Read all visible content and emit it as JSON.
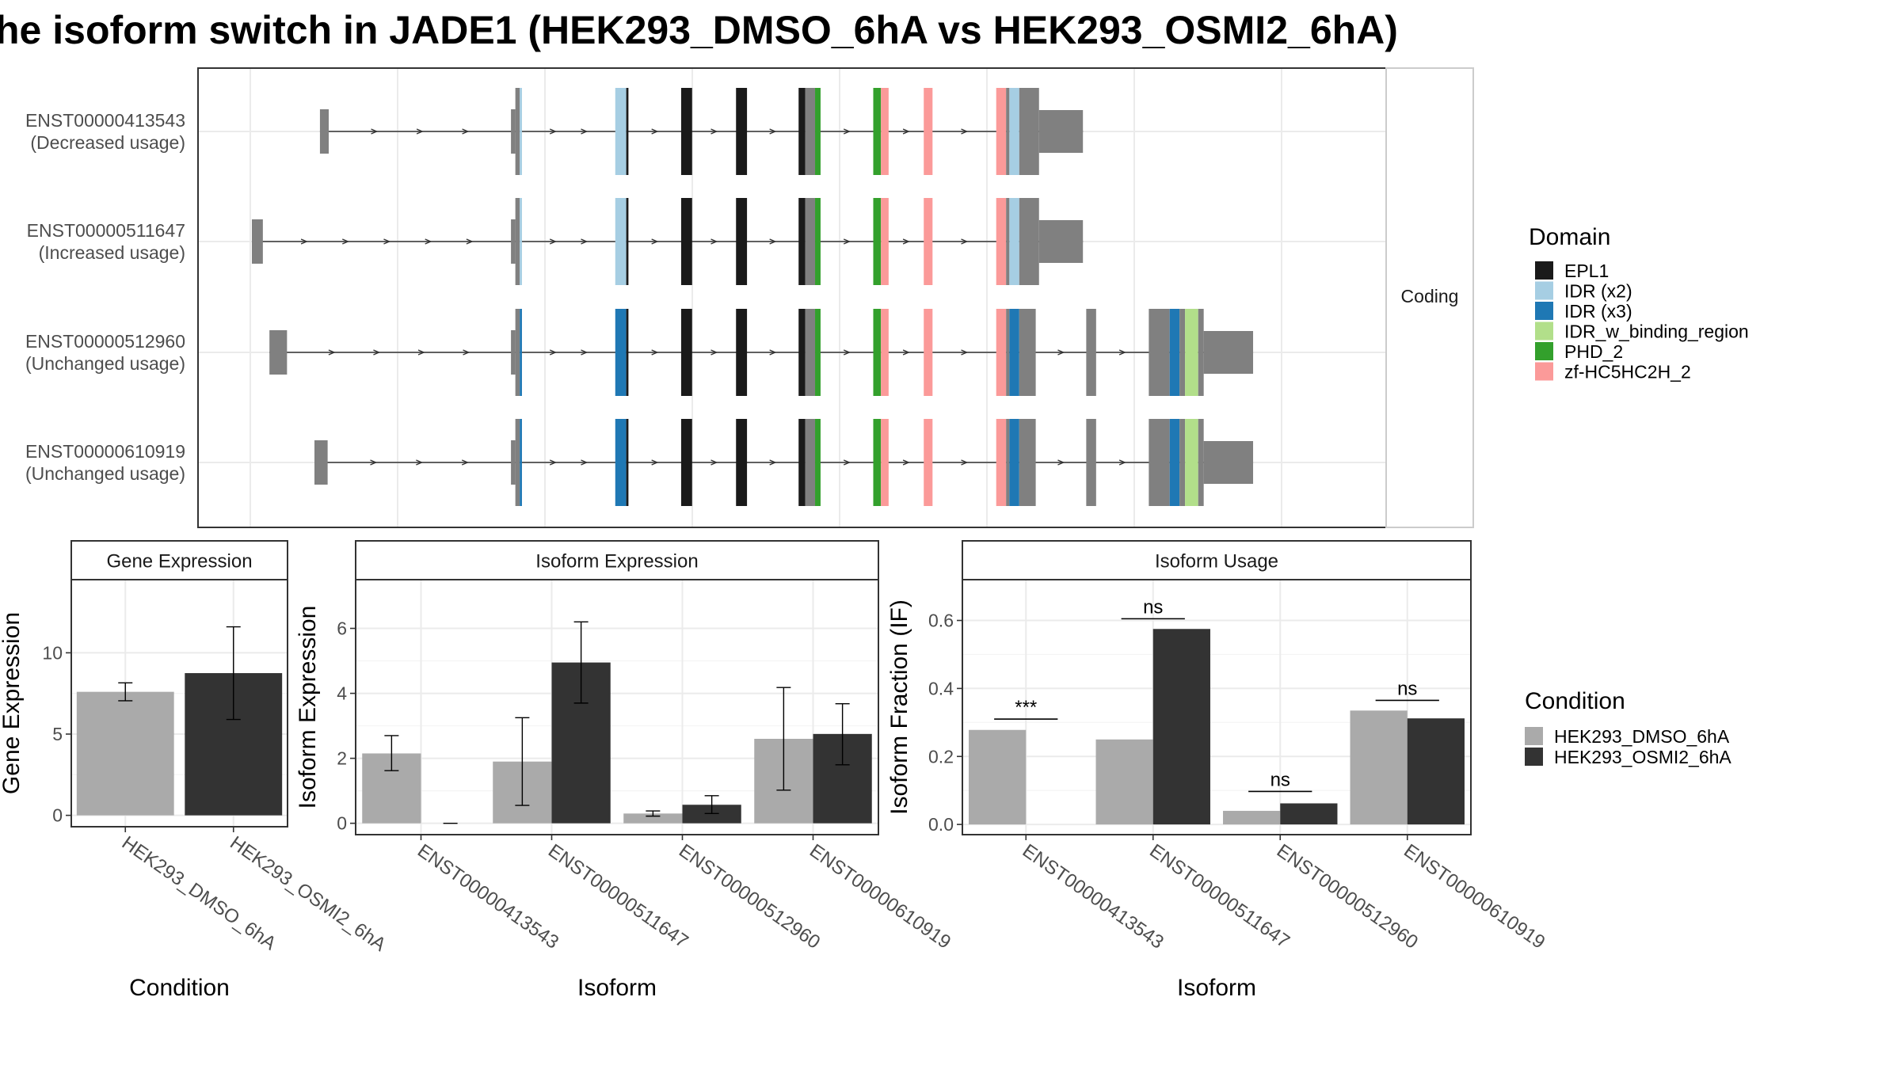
{
  "title": "he isoform switch in JADE1 (HEK293_DMSO_6hA vs HEK293_OSMI2_6hA)",
  "colors": {
    "EPL1": "#1a1a1a",
    "IDR (x2)": "#a6cee3",
    "IDR (x3)": "#1f78b4",
    "IDR_w_binding_region": "#b2df8a",
    "PHD_2": "#33a02c",
    "zf-HC5HC2H_2": "#fb9a99",
    "noncoding": "#808080",
    "dmso": "#aaaaaa",
    "osmi": "#333333"
  },
  "structure": {
    "strip_label": "Coding",
    "legend_title": "Domain",
    "legend_items": [
      "EPL1",
      "IDR (x2)",
      "IDR (x3)",
      "IDR_w_binding_region",
      "PHD_2",
      "zf-HC5HC2H_2"
    ],
    "genomic_range": [
      0,
      1000
    ],
    "transcripts": [
      {
        "id": "ENST00000413543",
        "status": "(Decreased usage)",
        "exons": [
          {
            "start": 62,
            "end": 70,
            "size": "small",
            "domain": "noncoding"
          },
          {
            "start": 236,
            "end": 240,
            "size": "small",
            "domain": "noncoding"
          },
          {
            "start": 240,
            "end": 244,
            "size": "large",
            "domain": "noncoding"
          },
          {
            "start": 244,
            "end": 246,
            "size": "large",
            "domain": "IDR (x2)"
          },
          {
            "start": 331,
            "end": 341,
            "size": "large",
            "domain": "IDR (x2)"
          },
          {
            "start": 341,
            "end": 343,
            "size": "large",
            "domain": "EPL1"
          },
          {
            "start": 391,
            "end": 401,
            "size": "large",
            "domain": "EPL1"
          },
          {
            "start": 441,
            "end": 451,
            "size": "large",
            "domain": "EPL1"
          },
          {
            "start": 498,
            "end": 504,
            "size": "large",
            "domain": "EPL1"
          },
          {
            "start": 504,
            "end": 513,
            "size": "large",
            "domain": "noncoding"
          },
          {
            "start": 513,
            "end": 518,
            "size": "large",
            "domain": "PHD_2"
          },
          {
            "start": 566,
            "end": 573,
            "size": "large",
            "domain": "PHD_2"
          },
          {
            "start": 573,
            "end": 580,
            "size": "large",
            "domain": "zf-HC5HC2H_2"
          },
          {
            "start": 612,
            "end": 620,
            "size": "large",
            "domain": "zf-HC5HC2H_2"
          },
          {
            "start": 678,
            "end": 687,
            "size": "large",
            "domain": "zf-HC5HC2H_2"
          },
          {
            "start": 687,
            "end": 690,
            "size": "large",
            "domain": "noncoding"
          },
          {
            "start": 690,
            "end": 699,
            "size": "large",
            "domain": "IDR (x2)"
          },
          {
            "start": 699,
            "end": 717,
            "size": "large",
            "domain": "noncoding"
          },
          {
            "start": 717,
            "end": 757,
            "size": "medium",
            "domain": "noncoding"
          }
        ]
      },
      {
        "id": "ENST00000511647",
        "status": "(Increased usage)",
        "exons": [
          {
            "start": 0,
            "end": 10,
            "size": "small",
            "domain": "noncoding"
          },
          {
            "start": 236,
            "end": 240,
            "size": "small",
            "domain": "noncoding"
          },
          {
            "start": 240,
            "end": 244,
            "size": "large",
            "domain": "noncoding"
          },
          {
            "start": 244,
            "end": 246,
            "size": "large",
            "domain": "IDR (x2)"
          },
          {
            "start": 331,
            "end": 341,
            "size": "large",
            "domain": "IDR (x2)"
          },
          {
            "start": 341,
            "end": 343,
            "size": "large",
            "domain": "EPL1"
          },
          {
            "start": 391,
            "end": 401,
            "size": "large",
            "domain": "EPL1"
          },
          {
            "start": 441,
            "end": 451,
            "size": "large",
            "domain": "EPL1"
          },
          {
            "start": 498,
            "end": 504,
            "size": "large",
            "domain": "EPL1"
          },
          {
            "start": 504,
            "end": 513,
            "size": "large",
            "domain": "noncoding"
          },
          {
            "start": 513,
            "end": 518,
            "size": "large",
            "domain": "PHD_2"
          },
          {
            "start": 566,
            "end": 573,
            "size": "large",
            "domain": "PHD_2"
          },
          {
            "start": 573,
            "end": 580,
            "size": "large",
            "domain": "zf-HC5HC2H_2"
          },
          {
            "start": 612,
            "end": 620,
            "size": "large",
            "domain": "zf-HC5HC2H_2"
          },
          {
            "start": 678,
            "end": 687,
            "size": "large",
            "domain": "zf-HC5HC2H_2"
          },
          {
            "start": 687,
            "end": 690,
            "size": "large",
            "domain": "noncoding"
          },
          {
            "start": 690,
            "end": 699,
            "size": "large",
            "domain": "IDR (x2)"
          },
          {
            "start": 699,
            "end": 717,
            "size": "large",
            "domain": "noncoding"
          },
          {
            "start": 717,
            "end": 757,
            "size": "medium",
            "domain": "noncoding"
          }
        ]
      },
      {
        "id": "ENST00000512960",
        "status": "(Unchanged usage)",
        "exons": [
          {
            "start": 16,
            "end": 32,
            "size": "small",
            "domain": "noncoding"
          },
          {
            "start": 236,
            "end": 240,
            "size": "small",
            "domain": "noncoding"
          },
          {
            "start": 240,
            "end": 244,
            "size": "large",
            "domain": "noncoding"
          },
          {
            "start": 244,
            "end": 246,
            "size": "large",
            "domain": "IDR (x3)"
          },
          {
            "start": 331,
            "end": 341,
            "size": "large",
            "domain": "IDR (x3)"
          },
          {
            "start": 341,
            "end": 343,
            "size": "large",
            "domain": "EPL1"
          },
          {
            "start": 391,
            "end": 401,
            "size": "large",
            "domain": "EPL1"
          },
          {
            "start": 441,
            "end": 451,
            "size": "large",
            "domain": "EPL1"
          },
          {
            "start": 498,
            "end": 504,
            "size": "large",
            "domain": "EPL1"
          },
          {
            "start": 504,
            "end": 513,
            "size": "large",
            "domain": "noncoding"
          },
          {
            "start": 513,
            "end": 518,
            "size": "large",
            "domain": "PHD_2"
          },
          {
            "start": 566,
            "end": 573,
            "size": "large",
            "domain": "PHD_2"
          },
          {
            "start": 573,
            "end": 580,
            "size": "large",
            "domain": "zf-HC5HC2H_2"
          },
          {
            "start": 612,
            "end": 620,
            "size": "large",
            "domain": "zf-HC5HC2H_2"
          },
          {
            "start": 678,
            "end": 687,
            "size": "large",
            "domain": "zf-HC5HC2H_2"
          },
          {
            "start": 687,
            "end": 690,
            "size": "large",
            "domain": "noncoding"
          },
          {
            "start": 690,
            "end": 699,
            "size": "large",
            "domain": "IDR (x3)"
          },
          {
            "start": 699,
            "end": 714,
            "size": "large",
            "domain": "noncoding"
          },
          {
            "start": 760,
            "end": 769,
            "size": "large",
            "domain": "noncoding"
          },
          {
            "start": 817,
            "end": 836,
            "size": "large",
            "domain": "noncoding"
          },
          {
            "start": 836,
            "end": 845,
            "size": "large",
            "domain": "IDR (x3)"
          },
          {
            "start": 845,
            "end": 850,
            "size": "large",
            "domain": "noncoding"
          },
          {
            "start": 850,
            "end": 862,
            "size": "large",
            "domain": "IDR_w_binding_region"
          },
          {
            "start": 862,
            "end": 867,
            "size": "large",
            "domain": "noncoding"
          },
          {
            "start": 867,
            "end": 912,
            "size": "medium",
            "domain": "noncoding"
          }
        ]
      },
      {
        "id": "ENST00000610919",
        "status": "(Unchanged usage)",
        "exons": [
          {
            "start": 57,
            "end": 69,
            "size": "small",
            "domain": "noncoding"
          },
          {
            "start": 236,
            "end": 240,
            "size": "small",
            "domain": "noncoding"
          },
          {
            "start": 240,
            "end": 244,
            "size": "large",
            "domain": "noncoding"
          },
          {
            "start": 244,
            "end": 246,
            "size": "large",
            "domain": "IDR (x3)"
          },
          {
            "start": 331,
            "end": 341,
            "size": "large",
            "domain": "IDR (x3)"
          },
          {
            "start": 341,
            "end": 343,
            "size": "large",
            "domain": "EPL1"
          },
          {
            "start": 391,
            "end": 401,
            "size": "large",
            "domain": "EPL1"
          },
          {
            "start": 441,
            "end": 451,
            "size": "large",
            "domain": "EPL1"
          },
          {
            "start": 498,
            "end": 504,
            "size": "large",
            "domain": "EPL1"
          },
          {
            "start": 504,
            "end": 513,
            "size": "large",
            "domain": "noncoding"
          },
          {
            "start": 513,
            "end": 518,
            "size": "large",
            "domain": "PHD_2"
          },
          {
            "start": 566,
            "end": 573,
            "size": "large",
            "domain": "PHD_2"
          },
          {
            "start": 573,
            "end": 580,
            "size": "large",
            "domain": "zf-HC5HC2H_2"
          },
          {
            "start": 612,
            "end": 620,
            "size": "large",
            "domain": "zf-HC5HC2H_2"
          },
          {
            "start": 678,
            "end": 687,
            "size": "large",
            "domain": "zf-HC5HC2H_2"
          },
          {
            "start": 687,
            "end": 690,
            "size": "large",
            "domain": "noncoding"
          },
          {
            "start": 690,
            "end": 699,
            "size": "large",
            "domain": "IDR (x3)"
          },
          {
            "start": 699,
            "end": 714,
            "size": "large",
            "domain": "noncoding"
          },
          {
            "start": 760,
            "end": 769,
            "size": "large",
            "domain": "noncoding"
          },
          {
            "start": 817,
            "end": 836,
            "size": "large",
            "domain": "noncoding"
          },
          {
            "start": 836,
            "end": 845,
            "size": "large",
            "domain": "IDR (x3)"
          },
          {
            "start": 845,
            "end": 850,
            "size": "large",
            "domain": "noncoding"
          },
          {
            "start": 850,
            "end": 862,
            "size": "large",
            "domain": "IDR_w_binding_region"
          },
          {
            "start": 862,
            "end": 867,
            "size": "large",
            "domain": "noncoding"
          },
          {
            "start": 867,
            "end": 912,
            "size": "medium",
            "domain": "noncoding"
          }
        ]
      }
    ]
  },
  "condition_legend": {
    "title": "Condition",
    "items": [
      "HEK293_DMSO_6hA",
      "HEK293_OSMI2_6hA"
    ]
  },
  "chart_data": [
    {
      "type": "bar",
      "title": "Gene Expression",
      "xlabel": "Condition",
      "ylabel": "Gene Expression",
      "ylim": [
        -0.7,
        14.5
      ],
      "yticks": [
        0,
        5,
        10
      ],
      "categories": [
        "HEK293_DMSO_6hA",
        "HEK293_OSMI2_6hA"
      ],
      "values": [
        7.6,
        8.75
      ],
      "errors": [
        [
          7.05,
          8.15
        ],
        [
          5.9,
          11.6
        ]
      ],
      "fills": [
        "dmso",
        "osmi"
      ]
    },
    {
      "type": "bar",
      "title": "Isoform Expression",
      "xlabel": "Isoform",
      "ylabel": "Isoform Expression",
      "ylim": [
        -0.35,
        7.5
      ],
      "yticks": [
        0,
        2,
        4,
        6
      ],
      "categories": [
        "ENST00000413543",
        "ENST00000511647",
        "ENST00000512960",
        "ENST00000610919"
      ],
      "series": [
        {
          "name": "HEK293_DMSO_6hA",
          "values": [
            2.15,
            1.9,
            0.3,
            2.6
          ],
          "errors": [
            [
              1.62,
              2.7
            ],
            [
              0.55,
              3.25
            ],
            [
              0.22,
              0.38
            ],
            [
              1.02,
              4.18
            ]
          ]
        },
        {
          "name": "HEK293_OSMI2_6hA",
          "values": [
            0.0,
            4.95,
            0.57,
            2.75
          ],
          "errors": [
            [
              0.0,
              0.0
            ],
            [
              3.7,
              6.2
            ],
            [
              0.3,
              0.85
            ],
            [
              1.8,
              3.68
            ]
          ]
        }
      ]
    },
    {
      "type": "bar",
      "title": "Isoform Usage",
      "xlabel": "Isoform",
      "ylabel": "Isoform Fraction (IF)",
      "ylim": [
        -0.03,
        0.72
      ],
      "yticks": [
        0.0,
        0.2,
        0.4,
        0.6
      ],
      "categories": [
        "ENST00000413543",
        "ENST00000511647",
        "ENST00000512960",
        "ENST00000610919"
      ],
      "series": [
        {
          "name": "HEK293_DMSO_6hA",
          "values": [
            0.278,
            0.25,
            0.04,
            0.335
          ]
        },
        {
          "name": "HEK293_OSMI2_6hA",
          "values": [
            0.0,
            0.575,
            0.062,
            0.312
          ]
        }
      ],
      "significance": [
        "***",
        "ns",
        "ns",
        "ns"
      ],
      "significance_y": [
        0.31,
        0.605,
        0.097,
        0.365
      ]
    }
  ]
}
